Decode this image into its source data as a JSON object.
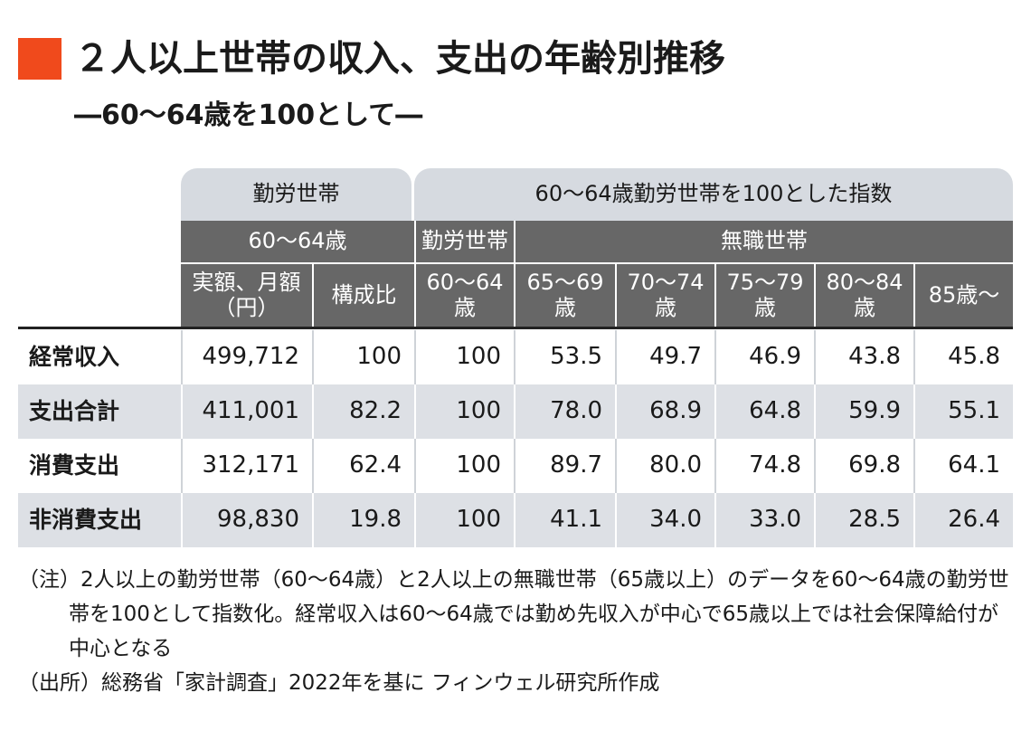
{
  "header": {
    "title": "２人以上世帯の収入、支出の年齢別推移",
    "subtitle": "―60〜64歳を100として―"
  },
  "table": {
    "group_headers": [
      "勤労世帯",
      "60〜64歳勤労世帯を100とした指数"
    ],
    "sub_headers": [
      "60〜64歳",
      "勤労世帯",
      "無職世帯"
    ],
    "column_headers": [
      "実額、月額\n（円）",
      "構成比",
      "60〜64\n歳",
      "65〜69\n歳",
      "70〜74\n歳",
      "75〜79\n歳",
      "80〜84\n歳",
      "85歳〜"
    ],
    "rows": [
      [
        "経常収入",
        "499,712",
        "100",
        "100",
        "53.5",
        "49.7",
        "46.9",
        "43.8",
        "45.8"
      ],
      [
        "支出合計",
        "411,001",
        "82.2",
        "100",
        "78.0",
        "68.9",
        "64.8",
        "59.9",
        "55.1"
      ],
      [
        "消費支出",
        "312,171",
        "62.4",
        "100",
        "89.7",
        "80.0",
        "74.8",
        "69.8",
        "64.1"
      ],
      [
        "非消費支出",
        "98,830",
        "19.8",
        "100",
        "41.1",
        "34.0",
        "33.0",
        "28.5",
        "26.4"
      ]
    ]
  },
  "notes": [
    "（注）2人以上の勤労世帯（60〜64歳）と2人以上の無職世帯（65歳以上）のデータを60〜64歳の勤労世帯を100として指数化。経常収入は60〜64歳では勤め先収入が中心で65歳以上では社会保障給付が中心となる",
    "（出所）総務省「家計調査」2022年を基に フィンウェル研究所作成"
  ]
}
